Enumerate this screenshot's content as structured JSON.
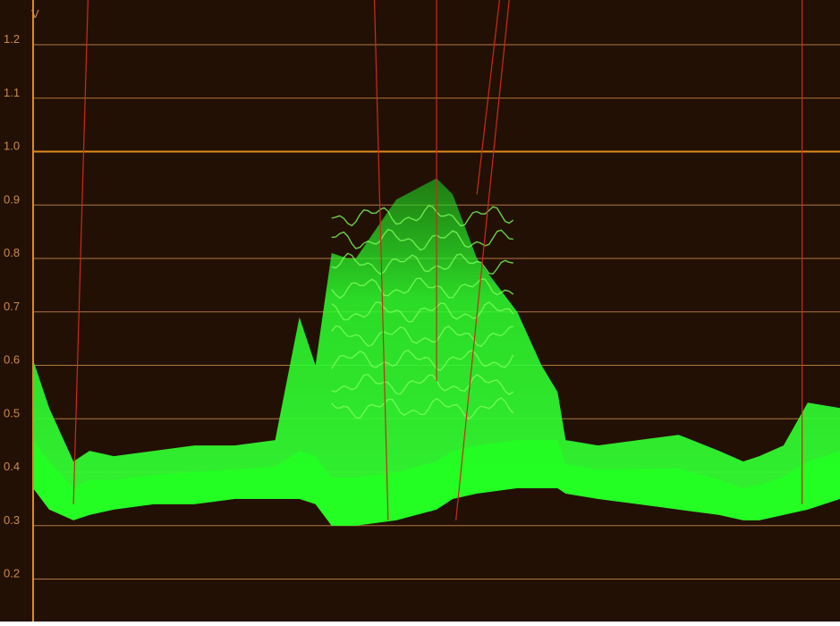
{
  "chart_data": {
    "type": "area",
    "title": "",
    "ylabel": "V",
    "xlabel": "",
    "ylim": [
      0.15,
      1.27
    ],
    "grid": true,
    "y_ticks": [
      {
        "label": "1.2",
        "value": 1.2
      },
      {
        "label": "1.1",
        "value": 1.1
      },
      {
        "label": "1.0",
        "value": 1.0
      },
      {
        "label": "0.9",
        "value": 0.9
      },
      {
        "label": "0.8",
        "value": 0.8
      },
      {
        "label": "0.7",
        "value": 0.7
      },
      {
        "label": "0.6",
        "value": 0.6
      },
      {
        "label": "0.5",
        "value": 0.5
      },
      {
        "label": "0.4",
        "value": 0.4
      },
      {
        "label": "0.3",
        "value": 0.3
      },
      {
        "label": "0.2",
        "value": 0.2
      }
    ],
    "reference_level": 1.0,
    "x": [
      0,
      0.02,
      0.05,
      0.07,
      0.1,
      0.15,
      0.2,
      0.25,
      0.3,
      0.33,
      0.35,
      0.37,
      0.39,
      0.4,
      0.45,
      0.5,
      0.52,
      0.55,
      0.6,
      0.63,
      0.65,
      0.66,
      0.7,
      0.75,
      0.8,
      0.85,
      0.88,
      0.9,
      0.93,
      0.96,
      1.0
    ],
    "series": [
      {
        "values_upper": [
          0.61,
          0.52,
          0.42,
          0.44,
          0.43,
          0.44,
          0.45,
          0.45,
          0.46,
          0.69,
          0.6,
          0.81,
          0.8,
          0.8,
          0.91,
          0.95,
          0.92,
          0.8,
          0.7,
          0.6,
          0.55,
          0.46,
          0.45,
          0.46,
          0.47,
          0.44,
          0.42,
          0.43,
          0.45,
          0.53,
          0.52
        ],
        "values_lower": [
          0.37,
          0.33,
          0.31,
          0.32,
          0.33,
          0.34,
          0.34,
          0.35,
          0.35,
          0.35,
          0.34,
          0.3,
          0.3,
          0.3,
          0.31,
          0.33,
          0.35,
          0.36,
          0.37,
          0.37,
          0.37,
          0.36,
          0.35,
          0.34,
          0.33,
          0.32,
          0.31,
          0.31,
          0.32,
          0.33,
          0.35
        ]
      }
    ],
    "colors": {
      "background": "#231004",
      "gridline": "#c8884a",
      "reference_line": "#e08a1e",
      "tick_text": "#c88a4e",
      "trace": "#22ff22",
      "trace_core": "#7dff5a",
      "annotation_line": "#cc2a1a"
    },
    "annotation_lines": [
      {
        "x_top": 0.068,
        "x_bottom": 0.05
      },
      {
        "x_top": 0.423,
        "x_bottom": 0.44
      },
      {
        "x_top": 0.5,
        "x_bottom": 0.5
      },
      {
        "x_top": 0.578,
        "x_bottom": 0.55
      },
      {
        "x_top": 0.59,
        "x_bottom": 0.524
      },
      {
        "x_top": 0.953,
        "x_bottom": 0.953
      }
    ]
  }
}
